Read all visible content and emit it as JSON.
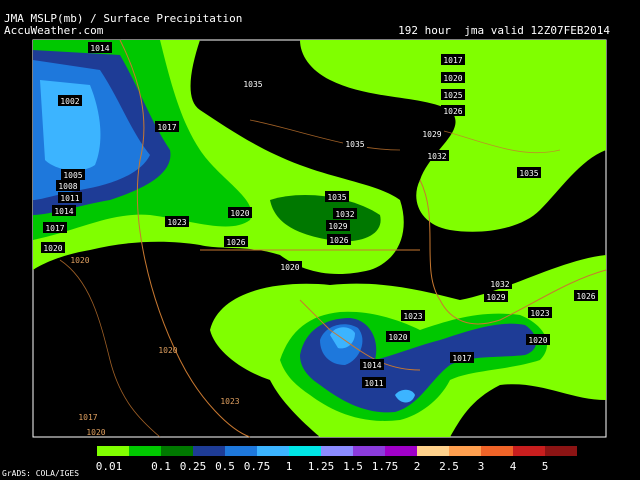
{
  "header": {
    "title": "JMA MSLP(mb) / Surface Precipitation",
    "source": "AccuWeather.com",
    "valid": "192 hour  jma valid 12Z07FEB2014"
  },
  "isobar_labels": [
    "1014",
    "1002",
    "1017",
    "1005",
    "1008",
    "1011",
    "1014",
    "1017",
    "1020",
    "1035",
    "1035",
    "1023",
    "1020",
    "1026",
    "1035",
    "1032",
    "1029",
    "1026",
    "1020",
    "1017",
    "1020",
    "1025",
    "1026",
    "1029",
    "1032",
    "1035",
    "1032",
    "1029",
    "1026",
    "1023",
    "1020",
    "1023",
    "1020",
    "1014",
    "1017",
    "1011",
    "1020",
    "1020",
    "1023",
    "1017",
    "1020"
  ],
  "legend": {
    "colors": [
      "#80ff00",
      "#00c800",
      "#007800",
      "#1e3c96",
      "#1e78dc",
      "#3cb4ff",
      "#00e6e6",
      "#8c8cff",
      "#8c3cdc",
      "#a000c8",
      "#ffd28c",
      "#ffa050",
      "#f06428",
      "#c81e1e",
      "#8c1414"
    ],
    "labels": [
      "0.01",
      "0.1",
      "0.25",
      "0.5",
      "0.75",
      "1",
      "1.25",
      "1.5",
      "1.75",
      "2",
      "2.5",
      "3",
      "4",
      "5"
    ]
  },
  "footer": "GrADS: COLA/IGES"
}
